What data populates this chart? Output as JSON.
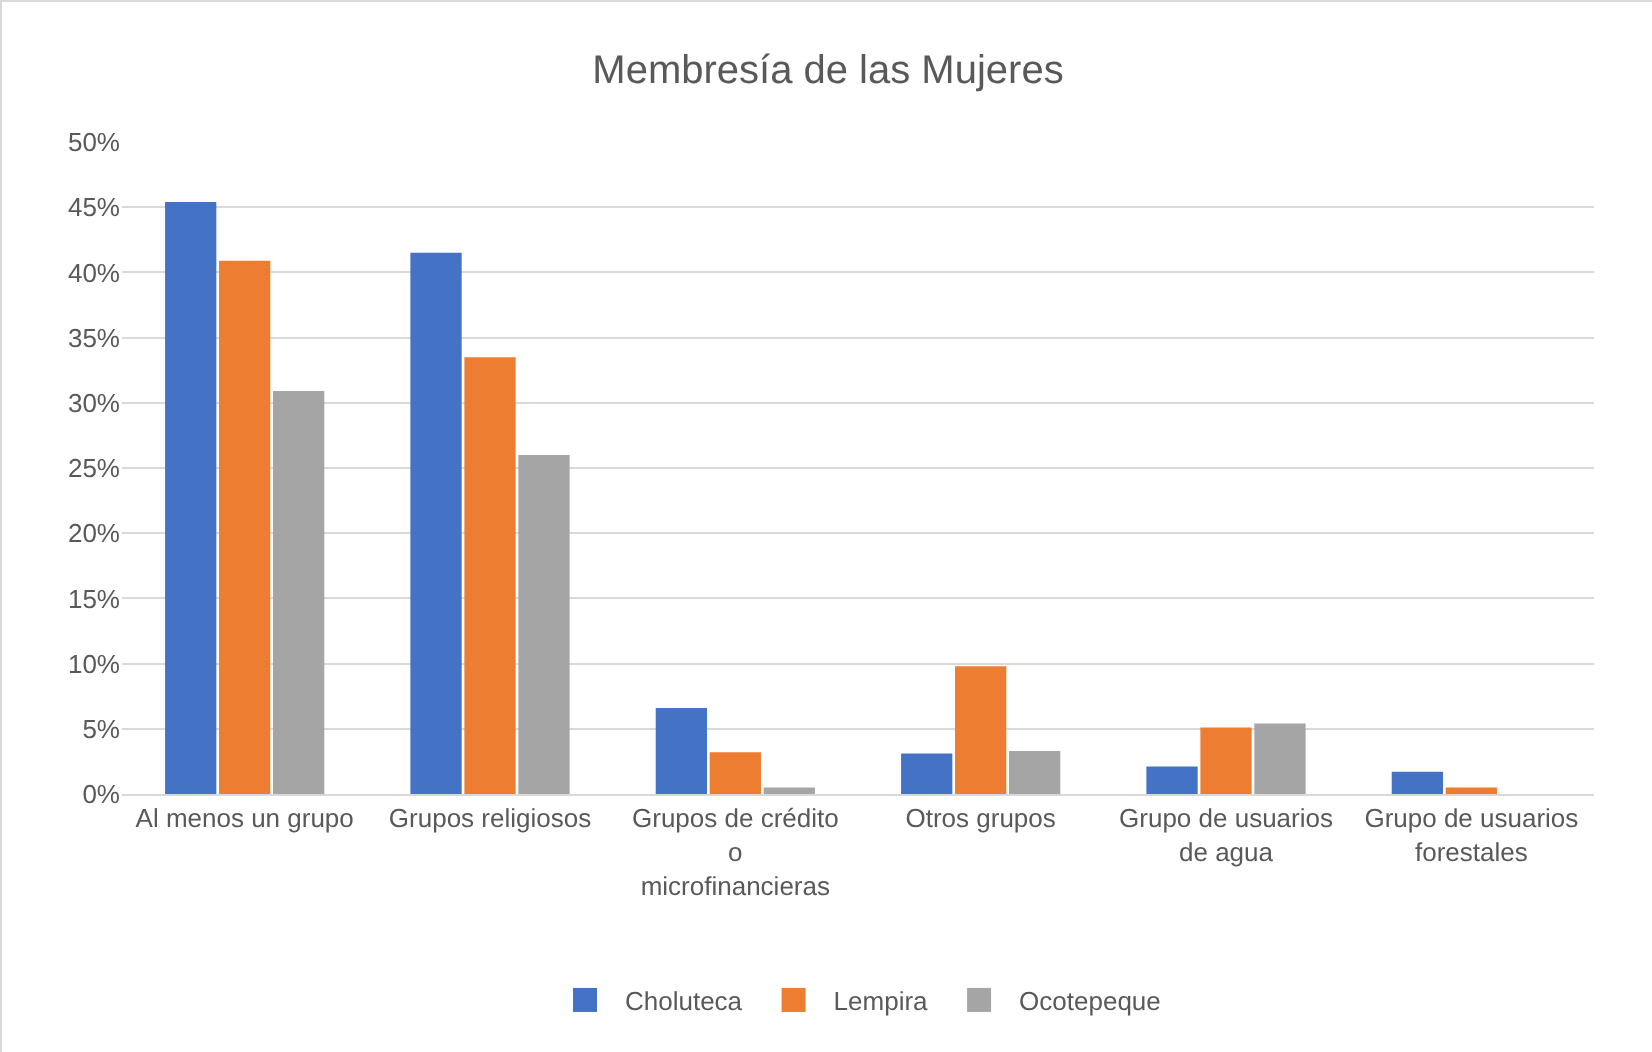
{
  "chart_data": {
    "type": "bar",
    "title": "Membresía de las Mujeres",
    "categories": [
      "Al menos un grupo",
      "Grupos religiosos",
      "Grupos de crédito o microfinancieras",
      "Otros grupos",
      "Grupo de usuarios de agua",
      "Grupo de usuarios forestales"
    ],
    "series": [
      {
        "name": "Choluteca",
        "color": "#4472c4",
        "values": [
          45.4,
          41.5,
          6.6,
          3.1,
          2.1,
          1.7
        ]
      },
      {
        "name": "Lempira",
        "color": "#ed7d31",
        "values": [
          40.9,
          33.5,
          3.2,
          9.8,
          5.1,
          0.5
        ]
      },
      {
        "name": "Ocotepeque",
        "color": "#a5a5a5",
        "values": [
          30.9,
          26.0,
          0.5,
          3.3,
          5.4,
          0
        ]
      }
    ],
    "ylim": [
      0,
      50
    ],
    "yticks": [
      {
        "value": 0,
        "label": "0%"
      },
      {
        "value": 5,
        "label": "5%"
      },
      {
        "value": 10,
        "label": "10%"
      },
      {
        "value": 15,
        "label": "15%"
      },
      {
        "value": 20,
        "label": "20%"
      },
      {
        "value": 25,
        "label": "25%"
      },
      {
        "value": 30,
        "label": "30%"
      },
      {
        "value": 35,
        "label": "35%"
      },
      {
        "value": 40,
        "label": "40%"
      },
      {
        "value": 45,
        "label": "45%"
      },
      {
        "value": 50,
        "label": "50%"
      }
    ],
    "grid": "y",
    "legend": "bottom"
  }
}
